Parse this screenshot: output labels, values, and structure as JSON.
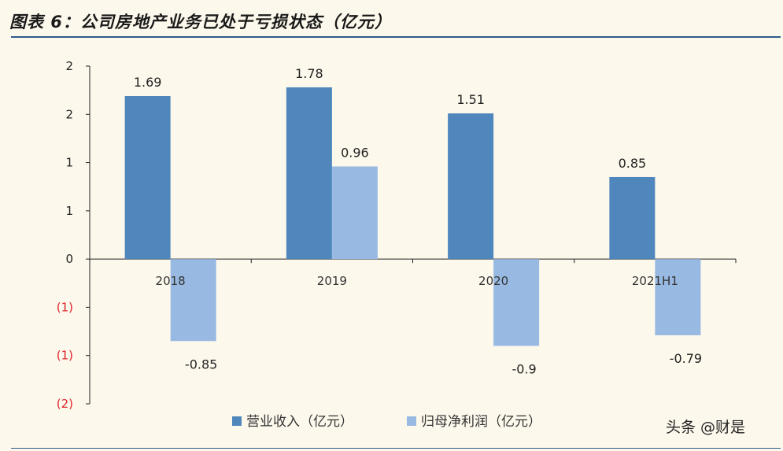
{
  "title": "图表 6：公司房地产业务已处于亏损状态（亿元）",
  "watermark": "头条 @财是",
  "colors": {
    "revenue": "#4f86bb",
    "profit": "#98b9e1",
    "axis": "#222222",
    "negative_tick": "#e0242a",
    "rule": "#2e5b8e"
  },
  "chart_data": {
    "type": "bar",
    "categories": [
      "2018",
      "2019",
      "2020",
      "2021H1"
    ],
    "series": [
      {
        "name": "营业收入（亿元）",
        "values": [
          1.69,
          1.78,
          1.51,
          0.85
        ],
        "labels": [
          "1.69",
          "1.78",
          "1.51",
          "0.85"
        ]
      },
      {
        "name": "归母净利润（亿元）",
        "values": [
          -0.85,
          0.96,
          -0.9,
          -0.79
        ],
        "labels": [
          "-0.85",
          "0.96",
          "-0.9",
          "-0.79"
        ]
      }
    ],
    "y_ticks": [
      {
        "value": 2.0,
        "label": "2"
      },
      {
        "value": 1.5,
        "label": "2"
      },
      {
        "value": 1.0,
        "label": "1"
      },
      {
        "value": 0.5,
        "label": "1"
      },
      {
        "value": 0.0,
        "label": "0"
      },
      {
        "value": -0.5,
        "label": "(1)"
      },
      {
        "value": -1.0,
        "label": "(1)"
      },
      {
        "value": -1.5,
        "label": "(2)"
      }
    ],
    "ylim": [
      -1.5,
      2.0
    ],
    "legend": "bottom",
    "grid": false
  }
}
